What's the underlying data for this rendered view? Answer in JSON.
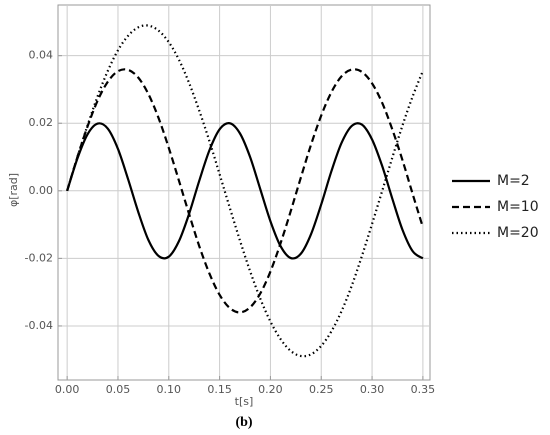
{
  "chart_data": {
    "type": "line",
    "x_label": "t[s]",
    "y_label": "φ[rad]",
    "caption": "(b)",
    "x": [
      0,
      0.01,
      0.02,
      0.03,
      0.04,
      0.05,
      0.06,
      0.07,
      0.08,
      0.09,
      0.1,
      0.11,
      0.12,
      0.13,
      0.14,
      0.15,
      0.16,
      0.17,
      0.18,
      0.19,
      0.2,
      0.21,
      0.22,
      0.23,
      0.24,
      0.25,
      0.26,
      0.27,
      0.28,
      0.29,
      0.3,
      0.31,
      0.32,
      0.33,
      0.34,
      0.35
    ],
    "series": [
      {
        "name": "M=2",
        "color": "#000000",
        "dash": "solid",
        "values": [
          0,
          0.0095,
          0.0167,
          0.0199,
          0.0184,
          0.0124,
          0.0034,
          -0.0063,
          -0.0146,
          -0.0193,
          -0.0195,
          -0.0149,
          -0.0068,
          0.003,
          0.012,
          0.0182,
          0.02,
          0.017,
          0.01,
          0.0005,
          -0.009,
          -0.0164,
          -0.0199,
          -0.0186,
          -0.0128,
          -0.004,
          0.0058,
          0.0142,
          0.0192,
          0.0196,
          0.0152,
          0.0073,
          -0.0024,
          -0.0116,
          -0.0179,
          -0.02
        ]
      },
      {
        "name": "M=10",
        "color": "#000000",
        "dash": "dashed",
        "values": [
          0,
          0.0099,
          0.019,
          0.0267,
          0.0323,
          0.0354,
          0.0358,
          0.0335,
          0.0286,
          0.0215,
          0.0127,
          0.003,
          -0.0069,
          -0.0164,
          -0.0245,
          -0.0308,
          -0.0347,
          -0.036,
          -0.0345,
          -0.0304,
          -0.0239,
          -0.0155,
          -0.006,
          0.004,
          0.0137,
          0.0223,
          0.0292,
          0.0339,
          0.0359,
          0.0352,
          0.0318,
          0.026,
          0.0181,
          0.009,
          -0.001,
          -0.0108
        ]
      },
      {
        "name": "M=20",
        "color": "#000000",
        "dash": "dotted",
        "values": [
          0,
          0.0099,
          0.0193,
          0.028,
          0.0355,
          0.0416,
          0.0459,
          0.0484,
          0.0489,
          0.0474,
          0.044,
          0.0388,
          0.0319,
          0.0237,
          0.0147,
          0.0049,
          -0.005,
          -0.0147,
          -0.0238,
          -0.0319,
          -0.0387,
          -0.0439,
          -0.0474,
          -0.0489,
          -0.0484,
          -0.0459,
          -0.0416,
          -0.0356,
          -0.0281,
          -0.0193,
          -0.0098,
          0,
          0.0099,
          0.0194,
          0.028,
          0.0355
        ]
      }
    ],
    "xlim": [
      -0.009,
      0.357
    ],
    "ylim": [
      -0.056,
      0.055
    ],
    "xticks": [
      {
        "value": 0,
        "label": "0.00"
      },
      0.05,
      {
        "value": 0.1,
        "label": "0.10"
      },
      0.15,
      {
        "value": 0.2,
        "label": "0.20"
      },
      0.25,
      {
        "value": 0.3,
        "label": "0.30"
      },
      0.35
    ],
    "yticks": [
      {
        "value": -0.04,
        "label": "-0.04"
      },
      {
        "value": -0.02,
        "label": "-0.02"
      },
      {
        "value": 0,
        "label": "0.00"
      },
      0.02,
      0.04
    ],
    "grid": true,
    "legend": "right"
  }
}
